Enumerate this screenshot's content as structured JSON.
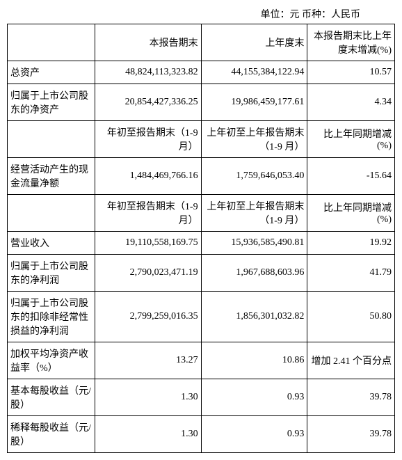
{
  "unit_line": "单位：元  币种：人民币",
  "header": {
    "blank": "",
    "col1": "本报告期末",
    "col2": "上年度末",
    "col3": "本报告期末比上年度末增减(%)"
  },
  "subheader": {
    "col1": "年初至报告期末（1-9 月）",
    "col2": "上年初至上年报告期末（1-9 月）",
    "col3": "比上年同期增减(%)"
  },
  "rows": {
    "r1": {
      "label": "总资产",
      "v1": "48,824,113,323.82",
      "v2": "44,155,384,122.94",
      "v3": "10.57"
    },
    "r2": {
      "label": "归属于上市公司股东的净资产",
      "v1": "20,854,427,336.25",
      "v2": "19,986,459,177.61",
      "v3": "4.34"
    },
    "r3": {
      "label": "经营活动产生的现金流量净额",
      "v1": "1,484,469,766.16",
      "v2": "1,759,646,053.40",
      "v3": "-15.64"
    },
    "r4": {
      "label": "营业收入",
      "v1": "19,110,558,169.75",
      "v2": "15,936,585,490.81",
      "v3": "19.92"
    },
    "r5": {
      "label": "归属于上市公司股东的净利润",
      "v1": "2,790,023,471.19",
      "v2": "1,967,688,603.96",
      "v3": "41.79"
    },
    "r6": {
      "label": "归属于上市公司股东的扣除非经常性损益的净利润",
      "v1": "2,799,259,016.35",
      "v2": "1,856,301,032.82",
      "v3": "50.80"
    },
    "r7": {
      "label": "加权平均净资产收益率（%）",
      "v1": "13.27",
      "v2": "10.86",
      "v3": "增加 2.41 个百分点"
    },
    "r8": {
      "label": "基本每股收益（元/股）",
      "v1": "1.30",
      "v2": "0.93",
      "v3": "39.78"
    },
    "r9": {
      "label": "稀释每股收益（元/股）",
      "v1": "1.30",
      "v2": "0.93",
      "v3": "39.78"
    }
  }
}
